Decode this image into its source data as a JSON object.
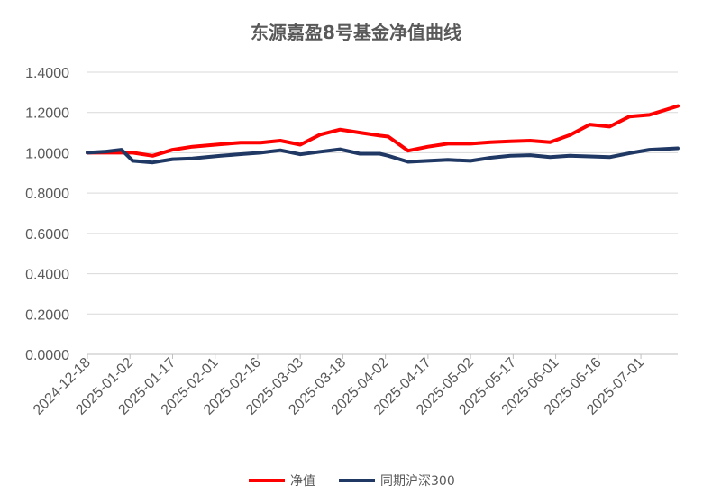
{
  "chart_data": {
    "type": "line",
    "title": "东源嘉盈8号基金净值曲线",
    "xlabel": "",
    "ylabel": "",
    "ylim": [
      0,
      1.4
    ],
    "yticks": [
      "0.0000",
      "0.2000",
      "0.4000",
      "0.6000",
      "0.8000",
      "1.0000",
      "1.2000",
      "1.4000"
    ],
    "xlim": [
      "2024-12-18",
      "2025-07-14"
    ],
    "xticks": [
      "2024-12-18",
      "2025-01-02",
      "2025-01-17",
      "2025-02-01",
      "2025-02-16",
      "2025-03-03",
      "2025-03-18",
      "2025-04-02",
      "2025-04-17",
      "2025-05-02",
      "2025-05-17",
      "2025-06-01",
      "2025-06-16",
      "2025-07-01"
    ],
    "grid": true,
    "legend": "bottom",
    "series": [
      {
        "name": "净值",
        "color": "#ff0000",
        "x": [
          "2024-12-18",
          "2024-12-24",
          "2024-12-30",
          "2025-01-03",
          "2025-01-10",
          "2025-01-17",
          "2025-01-24",
          "2025-02-03",
          "2025-02-10",
          "2025-02-17",
          "2025-02-24",
          "2025-03-03",
          "2025-03-10",
          "2025-03-17",
          "2025-03-24",
          "2025-03-31",
          "2025-04-03",
          "2025-04-10",
          "2025-04-17",
          "2025-04-24",
          "2025-05-02",
          "2025-05-09",
          "2025-05-16",
          "2025-05-23",
          "2025-05-30",
          "2025-06-06",
          "2025-06-13",
          "2025-06-20",
          "2025-06-27",
          "2025-07-04",
          "2025-07-14"
        ],
        "values": [
          1.0,
          1.0,
          1.0,
          1.0,
          0.985,
          1.015,
          1.03,
          1.042,
          1.05,
          1.05,
          1.06,
          1.04,
          1.09,
          1.115,
          1.1,
          1.085,
          1.08,
          1.01,
          1.03,
          1.045,
          1.045,
          1.052,
          1.057,
          1.06,
          1.052,
          1.088,
          1.14,
          1.13,
          1.18,
          1.188,
          1.232
        ]
      },
      {
        "name": "同期沪深300",
        "color": "#1f3864",
        "x": [
          "2024-12-18",
          "2024-12-24",
          "2024-12-30",
          "2025-01-03",
          "2025-01-10",
          "2025-01-17",
          "2025-01-24",
          "2025-02-03",
          "2025-02-10",
          "2025-02-17",
          "2025-02-24",
          "2025-03-03",
          "2025-03-10",
          "2025-03-17",
          "2025-03-24",
          "2025-03-31",
          "2025-04-03",
          "2025-04-10",
          "2025-04-17",
          "2025-04-24",
          "2025-05-02",
          "2025-05-09",
          "2025-05-16",
          "2025-05-23",
          "2025-05-30",
          "2025-06-06",
          "2025-06-13",
          "2025-06-20",
          "2025-06-27",
          "2025-07-04",
          "2025-07-14"
        ],
        "values": [
          1.0,
          1.005,
          1.015,
          0.96,
          0.952,
          0.968,
          0.972,
          0.985,
          0.993,
          1.0,
          1.012,
          0.992,
          1.005,
          1.017,
          0.995,
          0.995,
          0.985,
          0.955,
          0.96,
          0.965,
          0.96,
          0.975,
          0.985,
          0.988,
          0.978,
          0.985,
          0.982,
          0.978,
          0.998,
          1.015,
          1.022
        ]
      }
    ]
  }
}
